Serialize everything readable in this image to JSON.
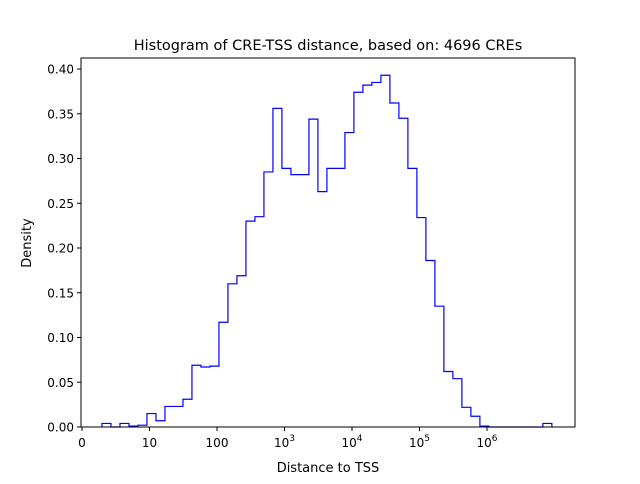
{
  "chart_data": {
    "type": "histogram",
    "title": "Histogram of CRE-TSS distance, based on: 4696 CREs",
    "xlabel": "Distance to TSS",
    "ylabel": "Density",
    "x_scale": "log10(distance+1)",
    "xlim": [
      0,
      7.37
    ],
    "ylim": [
      0,
      0.41
    ],
    "grid": false,
    "line_color": "#0000ff",
    "histtype": "step",
    "bin_start_log10": 0.296,
    "bin_width_log10": 0.1333,
    "densities": [
      0.004,
      0,
      0.004,
      0.001,
      0.002,
      0.015,
      0.007,
      0.023,
      0.023,
      0.031,
      0.069,
      0.067,
      0.068,
      0.117,
      0.16,
      0.169,
      0.23,
      0.235,
      0.285,
      0.356,
      0.289,
      0.282,
      0.282,
      0.344,
      0.263,
      0.289,
      0.289,
      0.329,
      0.374,
      0.382,
      0.385,
      0.393,
      0.362,
      0.345,
      0.289,
      0.234,
      0.186,
      0.135,
      0.062,
      0.054,
      0.022,
      0.012,
      0.001,
      0,
      0,
      0,
      0,
      0,
      0,
      0.004
    ],
    "x_ticks": [
      {
        "pos": 0,
        "label": "0",
        "exp": ""
      },
      {
        "pos": 1,
        "label": "10",
        "exp": ""
      },
      {
        "pos": 2,
        "label": "100",
        "exp": ""
      },
      {
        "pos": 3,
        "label": "10",
        "exp": "3"
      },
      {
        "pos": 4,
        "label": "10",
        "exp": "4"
      },
      {
        "pos": 5,
        "label": "10",
        "exp": "5"
      },
      {
        "pos": 6,
        "label": "10",
        "exp": "6"
      }
    ],
    "y_ticks": [
      "0.00",
      "0.05",
      "0.10",
      "0.15",
      "0.20",
      "0.25",
      "0.30",
      "0.35",
      "0.40"
    ]
  }
}
